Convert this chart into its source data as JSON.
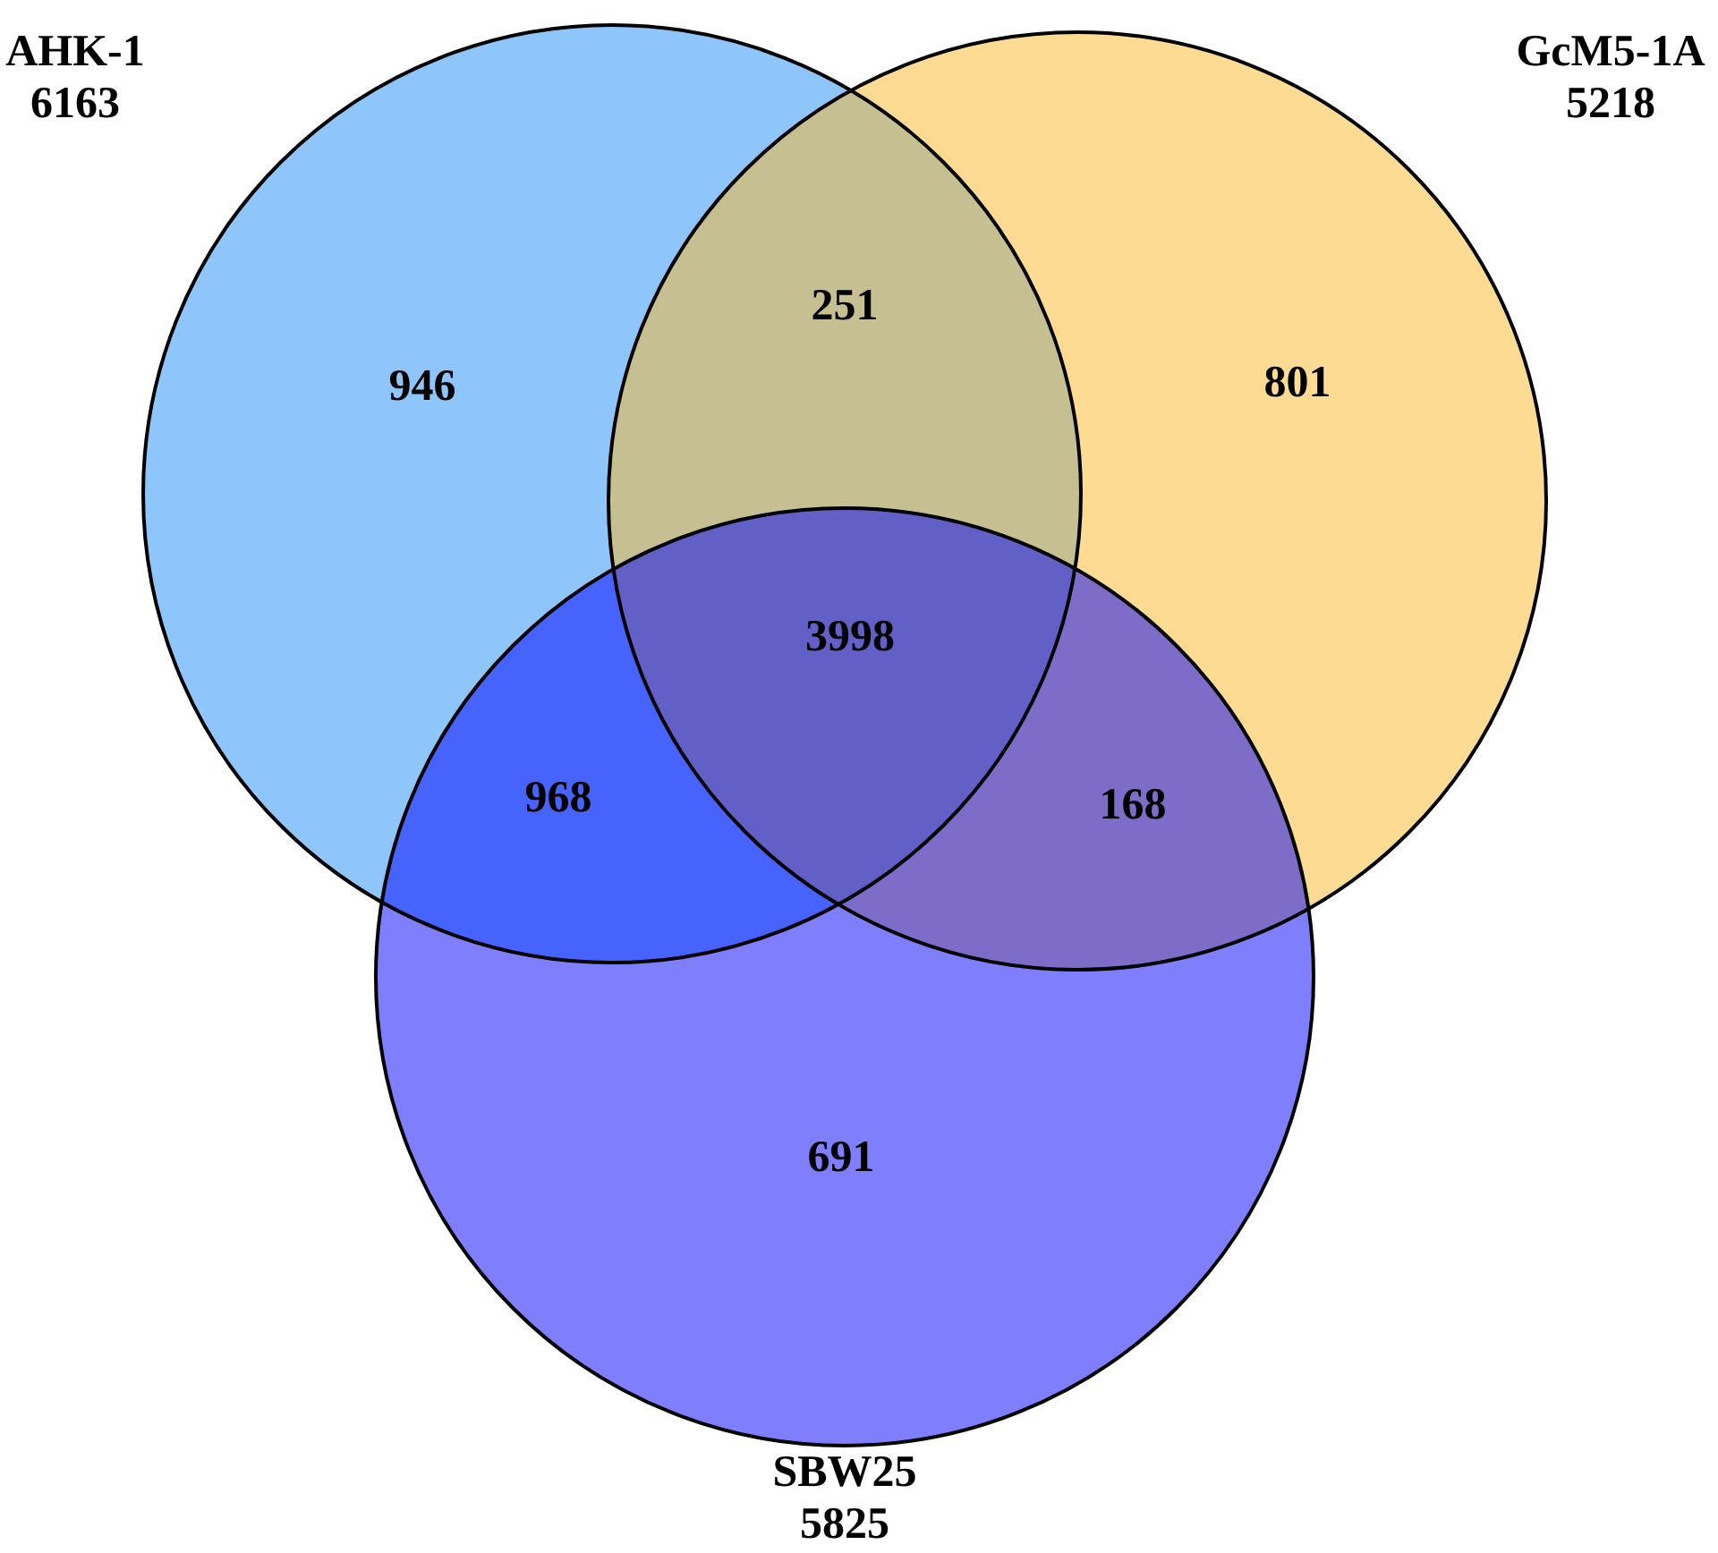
{
  "chart_data": {
    "type": "other",
    "categories": [
      "AHK-1",
      "GcM5-1A",
      "SBW25"
    ],
    "values": [
      6163,
      5218,
      5825
    ],
    "colors": [
      "#8ec6fc",
      "#fddb92",
      "#7f7ffe"
    ],
    "data_labels": true,
    "annotations": [
      "946",
      "251",
      "801",
      "3998",
      "968",
      "168",
      "691"
    ]
  }
}
